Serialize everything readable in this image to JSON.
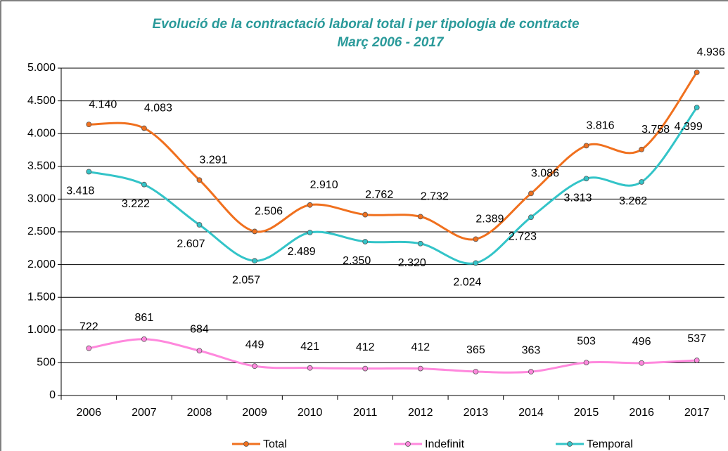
{
  "chart_data": {
    "type": "line",
    "title": "Evolució de la contractació laboral total i per tipologia de contracte",
    "subtitle": "Març  2006 - 2017",
    "categories": [
      "2006",
      "2007",
      "2008",
      "2009",
      "2010",
      "2011",
      "2012",
      "2013",
      "2014",
      "2015",
      "2016",
      "2017"
    ],
    "series": [
      {
        "name": "Total",
        "color": "#f0701e",
        "values": [
          4140,
          4083,
          3291,
          2506,
          2910,
          2762,
          2732,
          2389,
          3086,
          3816,
          3758,
          4936
        ],
        "value_labels": [
          "4.140",
          "4.083",
          "3.291",
          "2.506",
          "2.910",
          "2.762",
          "2.732",
          "2.389",
          "3.086",
          "3.816",
          "3.758",
          "4.936"
        ]
      },
      {
        "name": "Indefinit",
        "color": "#ff88dd",
        "values": [
          722,
          861,
          684,
          449,
          421,
          412,
          412,
          365,
          363,
          503,
          496,
          537
        ]
      },
      {
        "name": "Temporal",
        "color": "#33c4c8",
        "values": [
          3418,
          3222,
          2607,
          2057,
          2489,
          2350,
          2320,
          2024,
          2723,
          3313,
          3262,
          4399
        ],
        "value_labels": [
          "3.418",
          "3.222",
          "2.607",
          "2.057",
          "2.489",
          "2.350",
          "2.320",
          "2.024",
          "2.723",
          "3.313",
          "3.262",
          "4.399"
        ]
      }
    ],
    "ylim": [
      0,
      5000
    ],
    "yticks": [
      0,
      500,
      {
        "value": 1000,
        "label": "1.000"
      },
      {
        "value": 1500,
        "label": "1.500"
      },
      {
        "value": 2000,
        "label": "2.000"
      },
      {
        "value": 2500,
        "label": "2.500"
      },
      {
        "value": 3000,
        "label": "3.000"
      },
      {
        "value": 3500,
        "label": "3.500"
      },
      {
        "value": 4000,
        "label": "4.000"
      },
      {
        "value": 4500,
        "label": "4.500"
      },
      {
        "value": 5000,
        "label": "5.000"
      }
    ],
    "grid": true
  }
}
